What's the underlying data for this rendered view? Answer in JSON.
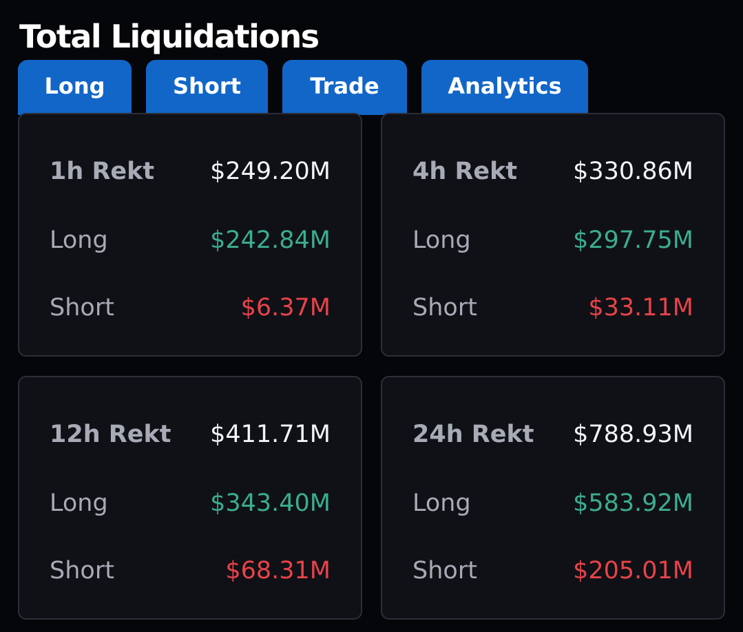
{
  "title": "Total Liquidations",
  "tabs": [
    {
      "label": "Long"
    },
    {
      "label": "Short"
    },
    {
      "label": "Trade"
    },
    {
      "label": "Analytics"
    }
  ],
  "colors": {
    "tab_bg": "#1266c8",
    "long": "#3bae8f",
    "short": "#e8434a",
    "card_bg": "#101116"
  },
  "cards": [
    {
      "period_label": "1h Rekt",
      "total": "$249.20M",
      "long_label": "Long",
      "long_value": "$242.84M",
      "short_label": "Short",
      "short_value": "$6.37M"
    },
    {
      "period_label": "4h Rekt",
      "total": "$330.86M",
      "long_label": "Long",
      "long_value": "$297.75M",
      "short_label": "Short",
      "short_value": "$33.11M"
    },
    {
      "period_label": "12h Rekt",
      "total": "$411.71M",
      "long_label": "Long",
      "long_value": "$343.40M",
      "short_label": "Short",
      "short_value": "$68.31M"
    },
    {
      "period_label": "24h Rekt",
      "total": "$788.93M",
      "long_label": "Long",
      "long_value": "$583.92M",
      "short_label": "Short",
      "short_value": "$205.01M"
    }
  ]
}
